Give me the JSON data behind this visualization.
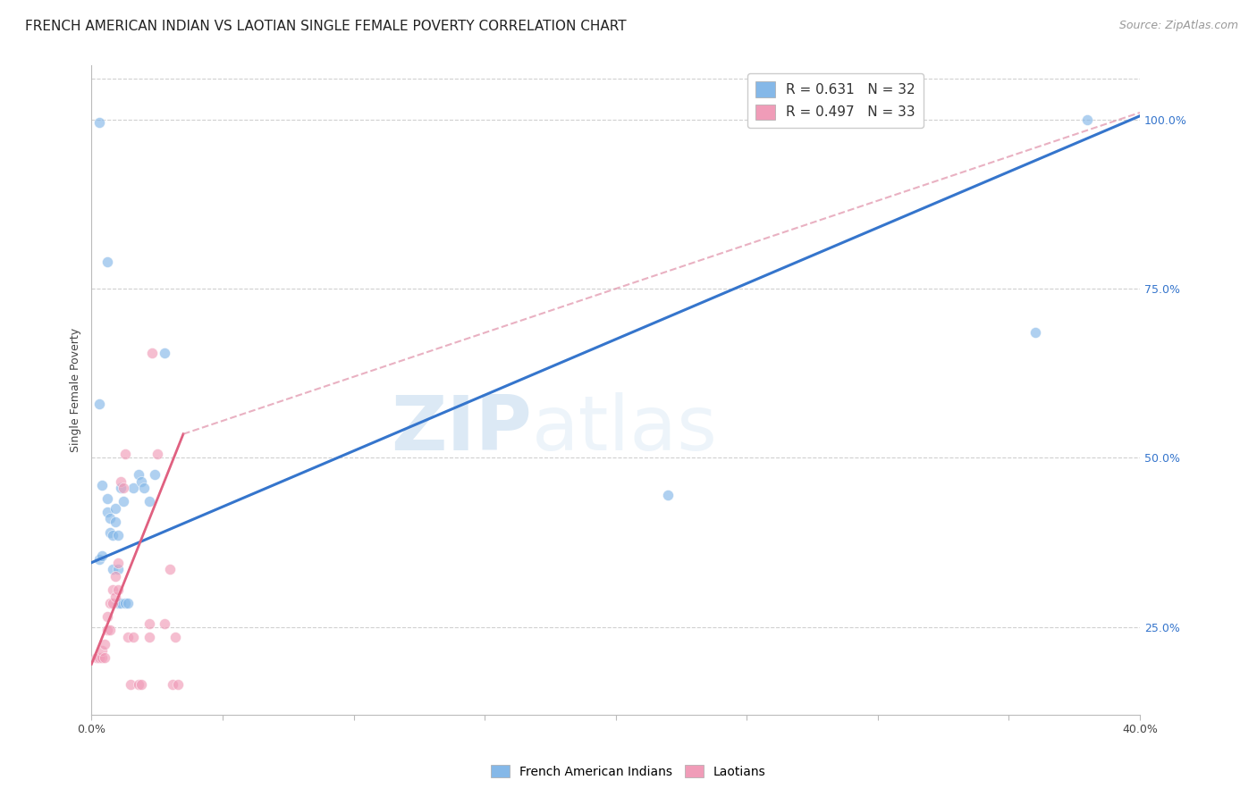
{
  "title": "FRENCH AMERICAN INDIAN VS LAOTIAN SINGLE FEMALE POVERTY CORRELATION CHART",
  "source": "Source: ZipAtlas.com",
  "ylabel": "Single Female Poverty",
  "ytick_labels": [
    "25.0%",
    "50.0%",
    "75.0%",
    "100.0%"
  ],
  "ytick_vals": [
    0.25,
    0.5,
    0.75,
    1.0
  ],
  "xlim": [
    0.0,
    0.4
  ],
  "ylim": [
    0.12,
    1.08
  ],
  "legend_entries": [
    {
      "label_r": "R = ",
      "label_rv": "0.631",
      "label_n": "   N = ",
      "label_nv": "32",
      "color": "#a8c8f0"
    },
    {
      "label_r": "R = ",
      "label_rv": "0.497",
      "label_n": "   N = ",
      "label_nv": "33",
      "color": "#f4b8c8"
    }
  ],
  "watermark_zip": "ZIP",
  "watermark_atlas": "atlas",
  "blue_scatter": [
    [
      0.003,
      0.995
    ],
    [
      0.006,
      0.79
    ],
    [
      0.003,
      0.58
    ],
    [
      0.004,
      0.46
    ],
    [
      0.003,
      0.35
    ],
    [
      0.004,
      0.355
    ],
    [
      0.006,
      0.42
    ],
    [
      0.006,
      0.44
    ],
    [
      0.007,
      0.41
    ],
    [
      0.007,
      0.39
    ],
    [
      0.008,
      0.385
    ],
    [
      0.008,
      0.335
    ],
    [
      0.009,
      0.425
    ],
    [
      0.009,
      0.405
    ],
    [
      0.01,
      0.385
    ],
    [
      0.01,
      0.335
    ],
    [
      0.01,
      0.285
    ],
    [
      0.011,
      0.285
    ],
    [
      0.011,
      0.455
    ],
    [
      0.012,
      0.435
    ],
    [
      0.013,
      0.285
    ],
    [
      0.014,
      0.285
    ],
    [
      0.016,
      0.455
    ],
    [
      0.018,
      0.475
    ],
    [
      0.019,
      0.465
    ],
    [
      0.02,
      0.455
    ],
    [
      0.022,
      0.435
    ],
    [
      0.024,
      0.475
    ],
    [
      0.028,
      0.655
    ],
    [
      0.22,
      0.445
    ],
    [
      0.36,
      0.685
    ],
    [
      0.38,
      1.0
    ]
  ],
  "pink_scatter": [
    [
      0.002,
      0.205
    ],
    [
      0.003,
      0.205
    ],
    [
      0.004,
      0.205
    ],
    [
      0.004,
      0.215
    ],
    [
      0.005,
      0.205
    ],
    [
      0.005,
      0.225
    ],
    [
      0.006,
      0.245
    ],
    [
      0.006,
      0.265
    ],
    [
      0.007,
      0.245
    ],
    [
      0.007,
      0.285
    ],
    [
      0.008,
      0.285
    ],
    [
      0.008,
      0.305
    ],
    [
      0.009,
      0.295
    ],
    [
      0.009,
      0.325
    ],
    [
      0.01,
      0.305
    ],
    [
      0.01,
      0.345
    ],
    [
      0.011,
      0.465
    ],
    [
      0.012,
      0.455
    ],
    [
      0.013,
      0.505
    ],
    [
      0.014,
      0.235
    ],
    [
      0.015,
      0.165
    ],
    [
      0.016,
      0.235
    ],
    [
      0.018,
      0.165
    ],
    [
      0.019,
      0.165
    ],
    [
      0.022,
      0.235
    ],
    [
      0.022,
      0.255
    ],
    [
      0.023,
      0.655
    ],
    [
      0.025,
      0.505
    ],
    [
      0.028,
      0.255
    ],
    [
      0.03,
      0.335
    ],
    [
      0.031,
      0.165
    ],
    [
      0.032,
      0.235
    ],
    [
      0.033,
      0.165
    ]
  ],
  "blue_line": {
    "x0": 0.0,
    "x1": 0.4,
    "y0": 0.345,
    "y1": 1.005
  },
  "pink_line_solid": {
    "x0": 0.0,
    "x1": 0.035,
    "y0": 0.195,
    "y1": 0.535
  },
  "pink_line_dashed": {
    "x0": 0.035,
    "x1": 0.4,
    "y0": 0.535,
    "y1": 1.01
  },
  "scatter_size": 75,
  "scatter_alpha": 0.65,
  "blue_color": "#85b8e8",
  "pink_color": "#f09cb8",
  "blue_line_color": "#3575cc",
  "pink_line_solid_color": "#e06080",
  "pink_line_dashed_color": "#e090a8",
  "grid_color": "#d0d0d0",
  "bg_color": "#ffffff",
  "title_fontsize": 11,
  "source_fontsize": 9,
  "axis_tick_fontsize": 9,
  "legend_fontsize": 11,
  "ytick_color": "#3575cc",
  "xtick_color": "#444444"
}
